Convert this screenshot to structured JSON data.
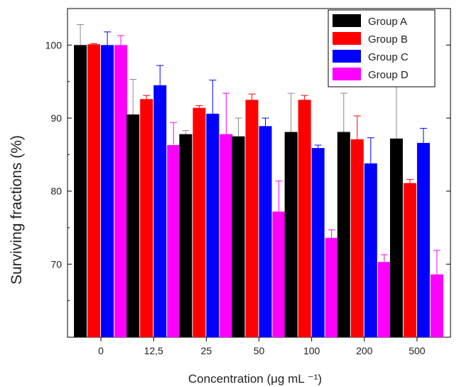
{
  "chart_data": {
    "type": "bar",
    "categories": [
      "0",
      "12,5",
      "25",
      "50",
      "100",
      "200",
      "500"
    ],
    "series": [
      {
        "name": "Group A",
        "color": "#000000",
        "values": [
          100.0,
          90.5,
          87.8,
          87.5,
          88.1,
          88.1,
          87.2
        ],
        "errors": [
          2.8,
          4.8,
          0.5,
          2.5,
          5.3,
          5.3,
          7.5
        ]
      },
      {
        "name": "Group B",
        "color": "#ff0000",
        "values": [
          100.1,
          92.6,
          91.4,
          92.5,
          92.5,
          87.1,
          81.1
        ],
        "errors": [
          0.1,
          0.5,
          0.3,
          0.8,
          0.6,
          3.2,
          0.5
        ]
      },
      {
        "name": "Group C",
        "color": "#0000ff",
        "values": [
          100.0,
          94.5,
          90.6,
          88.9,
          85.9,
          83.8,
          86.6
        ],
        "errors": [
          1.8,
          2.7,
          4.6,
          1.1,
          0.4,
          3.5,
          2.0
        ]
      },
      {
        "name": "Group D",
        "color": "#ff00ff",
        "values": [
          100.0,
          86.3,
          87.8,
          77.2,
          73.6,
          70.3,
          68.6
        ],
        "errors": [
          1.3,
          3.1,
          5.6,
          4.2,
          1.1,
          1.0,
          3.3
        ]
      }
    ],
    "xlabel": "Concentration (μg mL ⁻¹)",
    "ylabel": "Surviving fractions (%)",
    "ylim": [
      60,
      105
    ],
    "yticks": [
      70,
      80,
      90,
      100
    ],
    "legend_position": "top-right",
    "grid": false
  }
}
